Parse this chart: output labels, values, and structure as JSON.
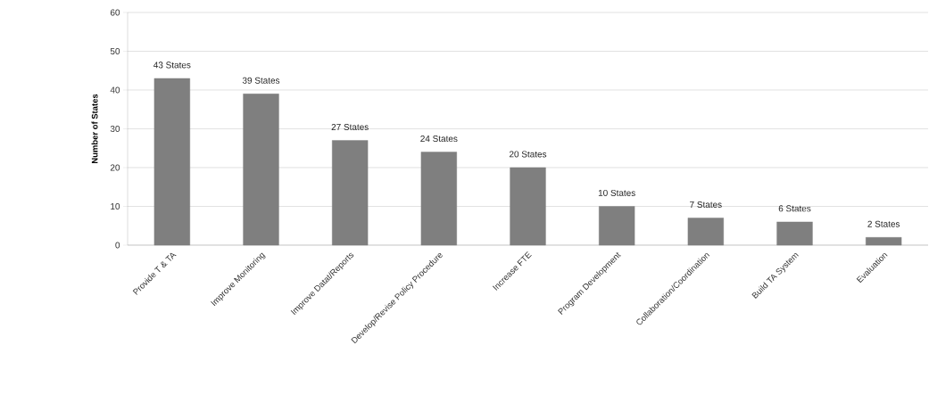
{
  "chart_data": {
    "type": "bar",
    "ylabel": "Number of States",
    "categories": [
      "Provide T & TA",
      "Improve Monitoring",
      "Improve Datat/Reports",
      "Develop/Revise Policy Procedure",
      "Increase FTE",
      "Program Development",
      "Collaboration/Coordination",
      "Build TA System",
      "Evaluation"
    ],
    "values": [
      43,
      39,
      27,
      24,
      20,
      10,
      7,
      6,
      2
    ],
    "value_labels": [
      "43 States",
      "39 States",
      "27 States",
      "24 States",
      "20 States",
      "10 States",
      "7 States",
      "6 States",
      "2 States"
    ],
    "color": "#7f7f7f",
    "ylim": [
      0,
      60
    ],
    "yticks": [
      0,
      10,
      20,
      30,
      40,
      50,
      60
    ],
    "grid": "y"
  }
}
